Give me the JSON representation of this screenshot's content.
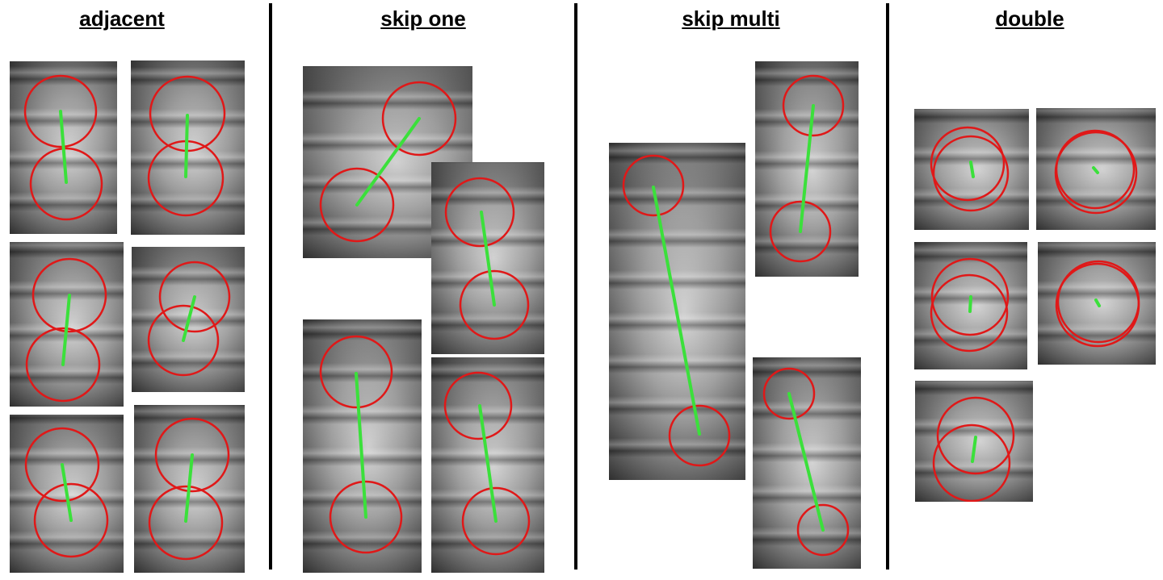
{
  "columns": [
    {
      "id": "adjacent",
      "title": "adjacent"
    },
    {
      "id": "skip-one",
      "title": "skip one"
    },
    {
      "id": "skip-multi",
      "title": "skip multi"
    },
    {
      "id": "double",
      "title": "double"
    }
  ]
}
